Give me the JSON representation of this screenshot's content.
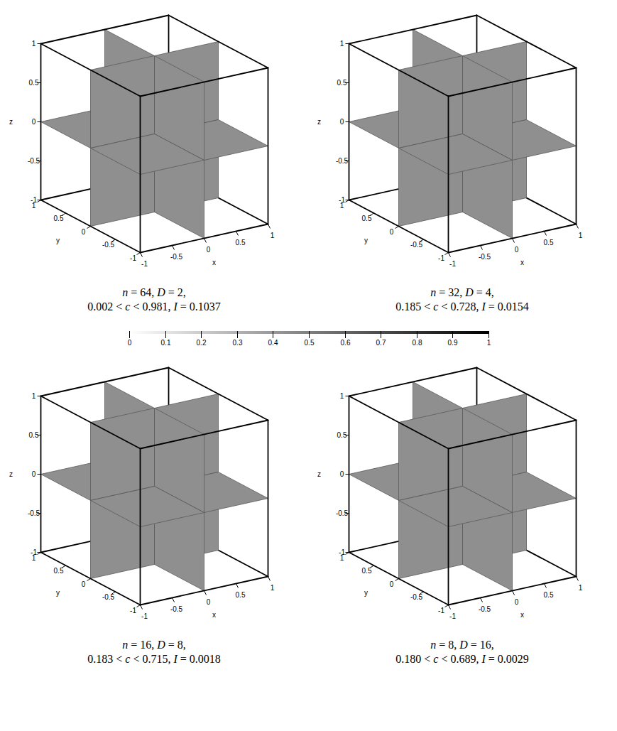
{
  "chart_data": {
    "type": "slice_3d",
    "x_label": "x",
    "y_label": "y",
    "z_label": "z",
    "xlim": [
      -1,
      1
    ],
    "ylim": [
      -1,
      1
    ],
    "zlim": [
      -1,
      1
    ],
    "xticks": [
      -1,
      -0.5,
      0,
      0.5,
      1
    ],
    "yticks": [
      -1,
      -0.5,
      0,
      0.5,
      1
    ],
    "zticks": [
      -1,
      -0.5,
      0,
      0.5,
      1
    ],
    "slice_planes": {
      "x": 0,
      "y": 0,
      "z": 0
    },
    "symbols": {
      "n": "n",
      "D": "D",
      "c": "c",
      "I": "I"
    },
    "panels": [
      {
        "n": 64,
        "D": 2,
        "c_min": 0.002,
        "c_max": 0.981,
        "I": 0.1037
      },
      {
        "n": 32,
        "D": 4,
        "c_min": 0.185,
        "c_max": 0.728,
        "I": 0.0154
      },
      {
        "n": 16,
        "D": 8,
        "c_min": 0.183,
        "c_max": 0.715,
        "I": 0.0018
      },
      {
        "n": 8,
        "D": 16,
        "c_min": {
          "value": 0.18,
          "label": "0.180"
        },
        "c_max": 0.689,
        "I": 0.0029
      }
    ],
    "colorbar": {
      "range": [
        0,
        1
      ],
      "colors": [
        "#ffffff",
        "#000000"
      ],
      "ticks": [
        0,
        0.1,
        0.2,
        0.3,
        0.4,
        0.5,
        0.6,
        0.7,
        0.8,
        0.9,
        1
      ]
    }
  }
}
